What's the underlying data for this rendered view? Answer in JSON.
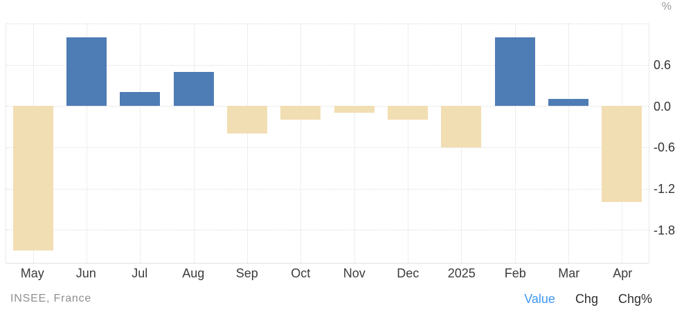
{
  "header": {
    "unit_label": "%"
  },
  "chart_data": {
    "type": "bar",
    "title": "",
    "xlabel": "",
    "ylabel": "%",
    "categories": [
      "May",
      "Jun",
      "Jul",
      "Aug",
      "Sep",
      "Oct",
      "Nov",
      "Dec",
      "2025",
      "Feb",
      "Mar",
      "Apr"
    ],
    "values": [
      -2.1,
      1.0,
      0.2,
      0.5,
      -0.4,
      -0.2,
      -0.1,
      -0.2,
      -0.6,
      1.0,
      0.1,
      -1.4
    ],
    "ylim": [
      -2.28,
      1.2
    ],
    "yticks": [
      0.6,
      0.0,
      -0.6,
      -1.2,
      -1.8
    ],
    "ytick_labels": [
      "0.6",
      "0.0",
      "-0.6",
      "-1.2",
      "-1.8"
    ],
    "ygrid": [
      1.2,
      0.6,
      0.0,
      -0.6,
      -1.2,
      -1.8
    ],
    "grid": true,
    "legend_position": "none",
    "axis_tick_side": "right",
    "colors": {
      "positive": "#4e7cb5",
      "negative": "#f2deb3"
    }
  },
  "footer": {
    "source": "INSEE, France",
    "modes": [
      {
        "label": "Value",
        "active": true
      },
      {
        "label": "Chg",
        "active": false
      },
      {
        "label": "Chg%",
        "active": false
      }
    ]
  },
  "ui_colors": {
    "active_mode": "#3f97f0",
    "inactive_mode": "#2e2e2e",
    "axis_text": "#333333",
    "muted_text": "#8f8f8f",
    "gridline": "#dcdcdc",
    "plot_border": "#e9e9e9"
  }
}
